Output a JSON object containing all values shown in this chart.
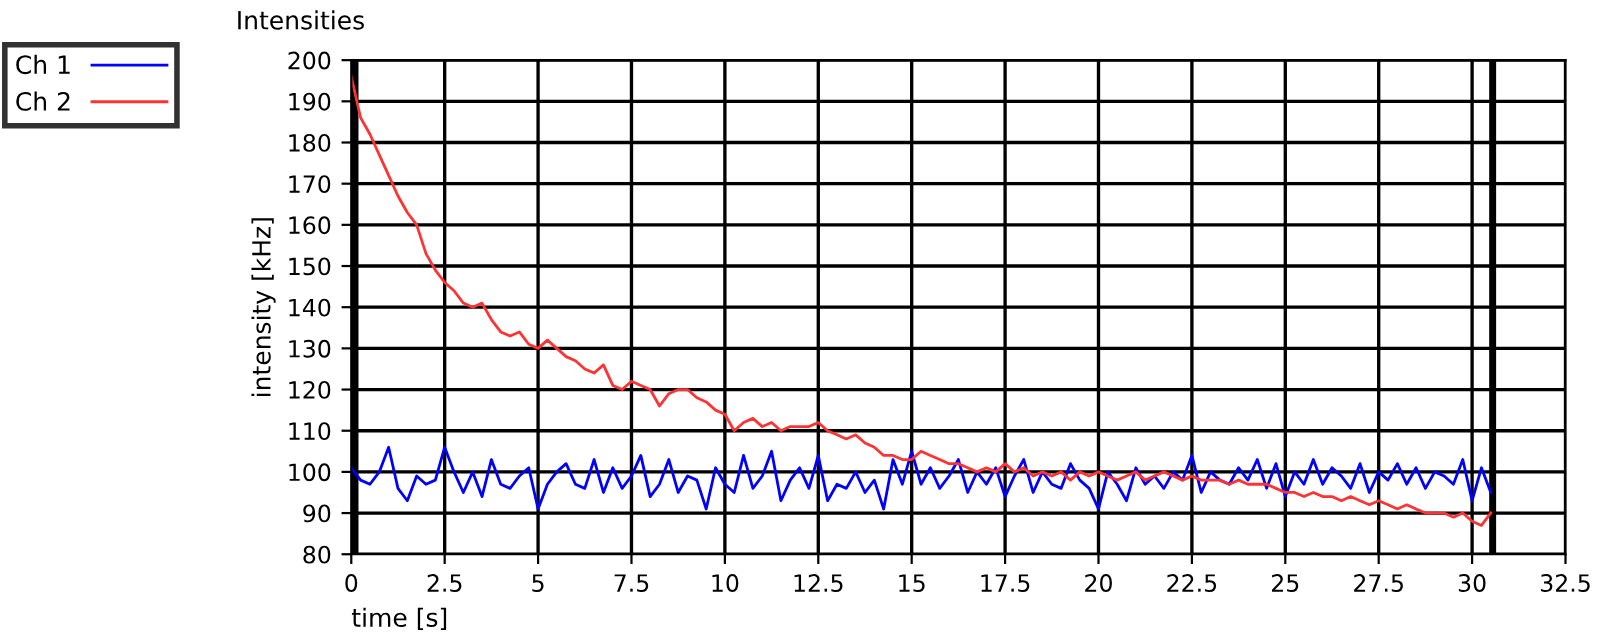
{
  "chart_data": {
    "type": "line",
    "title": "Intensities",
    "xlabel": "time [s]",
    "ylabel": "intensity [kHz]",
    "x": [
      0,
      0.25,
      0.5,
      0.75,
      1,
      1.25,
      1.5,
      1.75,
      2,
      2.25,
      2.5,
      2.75,
      3,
      3.25,
      3.5,
      3.75,
      4,
      4.25,
      4.5,
      4.75,
      5,
      5.25,
      5.5,
      5.75,
      6,
      6.25,
      6.5,
      6.75,
      7,
      7.25,
      7.5,
      7.75,
      8,
      8.25,
      8.5,
      8.75,
      9,
      9.25,
      9.5,
      9.75,
      10,
      10.25,
      10.5,
      10.75,
      11,
      11.25,
      11.5,
      11.75,
      12,
      12.25,
      12.5,
      12.75,
      13,
      13.25,
      13.5,
      13.75,
      14,
      14.25,
      14.5,
      14.75,
      15,
      15.25,
      15.5,
      15.75,
      16,
      16.25,
      16.5,
      16.75,
      17,
      17.25,
      17.5,
      17.75,
      18,
      18.25,
      18.5,
      18.75,
      19,
      19.25,
      19.5,
      19.75,
      20,
      20.25,
      20.5,
      20.75,
      21,
      21.25,
      21.5,
      21.75,
      22,
      22.25,
      22.5,
      22.75,
      23,
      23.25,
      23.5,
      23.75,
      24,
      24.25,
      24.5,
      24.75,
      25,
      25.25,
      25.5,
      25.75,
      26,
      26.25,
      26.5,
      26.75,
      27,
      27.25,
      27.5,
      27.75,
      28,
      28.25,
      28.5,
      28.75,
      29,
      29.25,
      29.5,
      29.75,
      30,
      30.25,
      30.5
    ],
    "series": [
      {
        "name": "Ch 1",
        "color": "#0000ff",
        "values": [
          101,
          98,
          97,
          100,
          106,
          96,
          93,
          99,
          97,
          98,
          106,
          100,
          95,
          100,
          94,
          103,
          97,
          96,
          99,
          101,
          91,
          97,
          100,
          102,
          97,
          96,
          103,
          95,
          101,
          96,
          99,
          104,
          94,
          97,
          103,
          95,
          99,
          98,
          91,
          101,
          97,
          95,
          104,
          96,
          99,
          105,
          93,
          98,
          101,
          96,
          104,
          93,
          97,
          96,
          100,
          95,
          98,
          91,
          103,
          97,
          105,
          97,
          101,
          96,
          99,
          103,
          95,
          100,
          97,
          101,
          94,
          99,
          103,
          95,
          100,
          97,
          96,
          102,
          98,
          96,
          91,
          100,
          97,
          93,
          101,
          97,
          99,
          96,
          100,
          98,
          104,
          95,
          100,
          98,
          97,
          101,
          98,
          103,
          96,
          102,
          94,
          100,
          97,
          103,
          97,
          101,
          99,
          96,
          102,
          95,
          100,
          98,
          102,
          97,
          101,
          96,
          100,
          99,
          97,
          103,
          93,
          101,
          95
        ]
      },
      {
        "name": "Ch 2",
        "color": "#ff3333",
        "values": [
          196,
          186,
          182,
          177,
          172,
          167,
          163,
          160,
          153,
          149,
          146,
          144,
          141,
          140,
          141,
          137,
          134,
          133,
          134,
          131,
          130,
          132,
          130,
          128,
          127,
          125,
          124,
          126,
          121,
          120,
          122,
          121,
          120,
          116,
          119,
          120,
          120,
          118,
          117,
          115,
          114,
          110,
          112,
          113,
          111,
          112,
          110,
          111,
          111,
          111,
          112,
          110,
          109,
          108,
          109,
          107,
          106,
          104,
          104,
          103,
          103,
          105,
          104,
          103,
          102,
          102,
          101,
          100,
          101,
          100,
          102,
          100,
          101,
          99,
          100,
          99,
          100,
          98,
          100,
          99,
          100,
          99,
          98,
          99,
          100,
          98,
          99,
          100,
          99,
          98,
          99,
          98,
          98,
          98,
          97,
          98,
          97,
          97,
          97,
          96,
          95,
          95,
          94,
          95,
          94,
          94,
          93,
          94,
          93,
          92,
          93,
          92,
          91,
          92,
          91,
          90,
          90,
          90,
          89,
          90,
          88,
          87,
          90
        ]
      }
    ],
    "xlim": [
      0,
      32.5
    ],
    "xticks": [
      0,
      2.5,
      5,
      7.5,
      10,
      12.5,
      15,
      17.5,
      20,
      22.5,
      25,
      27.5,
      30,
      32.5
    ],
    "ylim": [
      80,
      200
    ],
    "yticks": [
      80,
      90,
      100,
      110,
      120,
      130,
      140,
      150,
      160,
      170,
      180,
      190,
      200
    ],
    "ref_lines": [
      {
        "axis": "x",
        "value": 0.1,
        "color": "#000000"
      },
      {
        "axis": "x",
        "value": 30.55,
        "color": "#000000"
      }
    ],
    "grid": true,
    "legend": "top left",
    "marker": "none",
    "line_style": "solid"
  }
}
